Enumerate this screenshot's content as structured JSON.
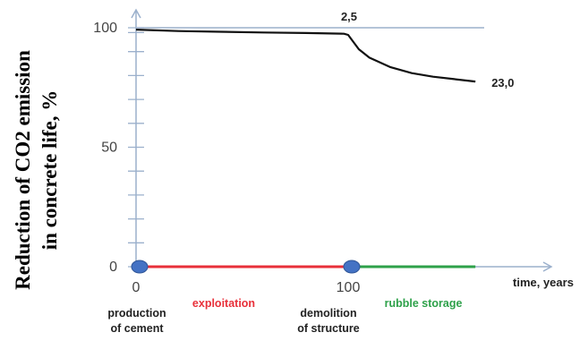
{
  "chart_data": {
    "type": "line",
    "ylabel_line1": "Reduction of CO2 emission",
    "ylabel_line2": "in concrete life, %",
    "xlabel": "time, years",
    "xlim": [
      0,
      160
    ],
    "ylim": [
      0,
      100
    ],
    "x_ticks": [
      0,
      100
    ],
    "y_ticks": [
      0,
      50,
      100
    ],
    "x_tick_labels": [
      "0",
      "100"
    ],
    "y_tick_labels": [
      "0",
      "50",
      "100"
    ],
    "reference_line_y": 100,
    "series": [
      {
        "color": "#111111",
        "x": [
          0,
          20,
          40,
          60,
          80,
          98,
          100,
          105,
          110,
          120,
          130,
          140,
          150,
          160
        ],
        "y": [
          99.2,
          98.6,
          98.3,
          98.0,
          97.8,
          97.5,
          97.0,
          91.0,
          87.5,
          83.5,
          81.0,
          79.5,
          78.5,
          77.5
        ]
      }
    ],
    "annotations": [
      {
        "text": "2,5",
        "x": 100,
        "y": 100
      },
      {
        "text": "23,0",
        "x": 160,
        "y": 77.5
      }
    ],
    "phase_lines": [
      {
        "from": 0,
        "to": 100,
        "color": "#e8303a"
      },
      {
        "from": 100,
        "to": 160,
        "color": "#2ea14a"
      }
    ],
    "milestones": [
      {
        "x": 0,
        "color": "#4472c4"
      },
      {
        "x": 100,
        "color": "#4472c4"
      }
    ],
    "phase_labels": [
      {
        "line1": "production",
        "line2": "of cement",
        "color": "#222222"
      },
      {
        "line1": "exploitation",
        "line2": "",
        "color": "#e8303a"
      },
      {
        "line1": "demolition",
        "line2": "of  structure",
        "color": "#222222"
      },
      {
        "line1": "rubble storage",
        "line2": "",
        "color": "#2ea14a"
      }
    ],
    "axis_color": "#9bb0cc",
    "grid": false
  }
}
